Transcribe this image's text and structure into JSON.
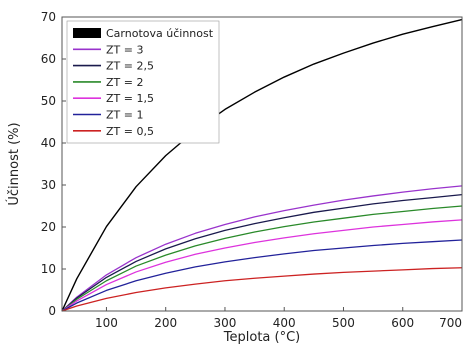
{
  "chart_data": {
    "type": "line",
    "xlabel": "Teplota (°C)",
    "ylabel": "Účinnost (%)",
    "xlim": [
      25,
      700
    ],
    "ylim": [
      0,
      70
    ],
    "x_ticks": [
      100,
      200,
      300,
      400,
      500,
      600,
      700
    ],
    "y_ticks": [
      0,
      10,
      20,
      30,
      40,
      50,
      60,
      70
    ],
    "grid": false,
    "legend_position": "top-left",
    "x": [
      25,
      50,
      100,
      150,
      200,
      250,
      300,
      350,
      400,
      450,
      500,
      550,
      600,
      650,
      700
    ],
    "series": [
      {
        "name": "Carnotova účinnost",
        "color": "#000000",
        "values": [
          0,
          7.7,
          20.1,
          29.6,
          37.0,
          43.0,
          48.0,
          52.1,
          55.7,
          58.8,
          61.4,
          63.8,
          65.9,
          67.7,
          69.4
        ]
      },
      {
        "name": "ZT = 3",
        "color": "#9933cc",
        "values": [
          0,
          3.3,
          8.6,
          12.7,
          15.9,
          18.5,
          20.6,
          22.4,
          23.9,
          25.2,
          26.4,
          27.4,
          28.3,
          29.1,
          29.8
        ]
      },
      {
        "name": "ZT = 2,5",
        "color": "#1a1a4d",
        "values": [
          0,
          3.1,
          8.0,
          11.8,
          14.8,
          17.2,
          19.2,
          20.8,
          22.2,
          23.5,
          24.5,
          25.5,
          26.3,
          27.0,
          27.7
        ]
      },
      {
        "name": "ZT = 2",
        "color": "#2a8a2a",
        "values": [
          0,
          2.8,
          7.2,
          10.7,
          13.3,
          15.5,
          17.3,
          18.8,
          20.1,
          21.2,
          22.1,
          23.0,
          23.7,
          24.4,
          25.0
        ]
      },
      {
        "name": "ZT = 1,5",
        "color": "#dd33dd",
        "values": [
          0,
          2.4,
          6.3,
          9.3,
          11.6,
          13.5,
          15.0,
          16.3,
          17.4,
          18.4,
          19.2,
          20.0,
          20.6,
          21.2,
          21.7
        ]
      },
      {
        "name": "ZT = 1",
        "color": "#22229a",
        "values": [
          0,
          1.9,
          4.9,
          7.2,
          9.0,
          10.5,
          11.7,
          12.7,
          13.6,
          14.4,
          15.0,
          15.6,
          16.1,
          16.5,
          16.9
        ]
      },
      {
        "name": "ZT = 0,5",
        "color": "#cc2222",
        "values": [
          0,
          1.2,
          3.0,
          4.4,
          5.5,
          6.4,
          7.2,
          7.8,
          8.3,
          8.8,
          9.2,
          9.5,
          9.8,
          10.1,
          10.3
        ]
      }
    ]
  }
}
